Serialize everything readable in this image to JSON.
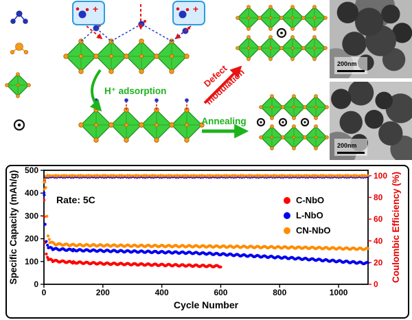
{
  "schematic": {
    "labels": {
      "plus_left": "+",
      "plus_right": "+",
      "h_adsorption": "H⁺ adsorption",
      "defect_line1": "Defect",
      "defect_line2": "modulation",
      "annealing": "Annealing"
    },
    "icons": [
      {
        "name": "proton-cluster-icon",
        "color": "#2233bb"
      },
      {
        "name": "niobium-atom-icon",
        "color": "#f59a1a"
      },
      {
        "name": "nbo6-octahedron-icon",
        "color": "#3ecf3e"
      },
      {
        "name": "oxygen-vacancy-icon",
        "color": "#111111"
      }
    ],
    "tem": [
      {
        "scale": "200nm"
      },
      {
        "scale": "200nm"
      }
    ]
  },
  "chart_data": {
    "type": "scatter",
    "title": "",
    "xlabel": "Cycle Number",
    "ylabel_left": "Specific Capacity (mAh/g)",
    "ylabel_right": "Coulombic Efficiency (%)",
    "annotation": "Rate: 5C",
    "grid": false,
    "legend_position": "right-middle",
    "xlim": [
      0,
      1100
    ],
    "ylim_left": [
      0,
      500
    ],
    "ylim_right": [
      0,
      105
    ],
    "x_ticks": [
      0,
      200,
      400,
      600,
      800,
      1000
    ],
    "y_ticks_left": [
      0,
      100,
      200,
      300,
      400,
      500
    ],
    "y_ticks_right": [
      0,
      20,
      40,
      60,
      80,
      100
    ],
    "colors": {
      "accent_right_axis": "#e60000"
    },
    "series": [
      {
        "name": "C-NbO",
        "color": "#ff0000",
        "max_cycle": 600,
        "capacity": [
          [
            1,
            300
          ],
          [
            4,
            180
          ],
          [
            8,
            130
          ],
          [
            15,
            110
          ],
          [
            30,
            103
          ],
          [
            100,
            96
          ],
          [
            200,
            91
          ],
          [
            300,
            88
          ],
          [
            400,
            85
          ],
          [
            500,
            82
          ],
          [
            600,
            79
          ]
        ],
        "efficiency": [
          [
            1,
            78
          ],
          [
            3,
            95
          ],
          [
            6,
            98
          ],
          [
            12,
            99
          ],
          [
            600,
            99
          ]
        ]
      },
      {
        "name": "L-NbO",
        "color": "#0000ee",
        "max_cycle": 1100,
        "capacity": [
          [
            1,
            395
          ],
          [
            4,
            260
          ],
          [
            8,
            185
          ],
          [
            15,
            162
          ],
          [
            30,
            155
          ],
          [
            100,
            150
          ],
          [
            200,
            147
          ],
          [
            300,
            144
          ],
          [
            400,
            141
          ],
          [
            500,
            138
          ],
          [
            600,
            132
          ],
          [
            700,
            125
          ],
          [
            800,
            118
          ],
          [
            900,
            110
          ],
          [
            1000,
            101
          ],
          [
            1100,
            92
          ]
        ],
        "efficiency": [
          [
            1,
            85
          ],
          [
            3,
            96
          ],
          [
            6,
            98
          ],
          [
            12,
            99
          ],
          [
            1100,
            99
          ]
        ]
      },
      {
        "name": "CN-NbO",
        "color": "#ff8c00",
        "max_cycle": 1100,
        "capacity": [
          [
            1,
            452
          ],
          [
            3,
            446
          ],
          [
            6,
            428
          ],
          [
            10,
            300
          ],
          [
            14,
            210
          ],
          [
            20,
            185
          ],
          [
            40,
            176
          ],
          [
            100,
            172
          ],
          [
            300,
            169
          ],
          [
            500,
            167
          ],
          [
            700,
            164
          ],
          [
            900,
            160
          ],
          [
            1100,
            155
          ]
        ],
        "efficiency": [
          [
            1,
            88
          ],
          [
            3,
            97
          ],
          [
            6,
            99
          ],
          [
            12,
            100
          ],
          [
            1100,
            100
          ]
        ]
      }
    ]
  }
}
